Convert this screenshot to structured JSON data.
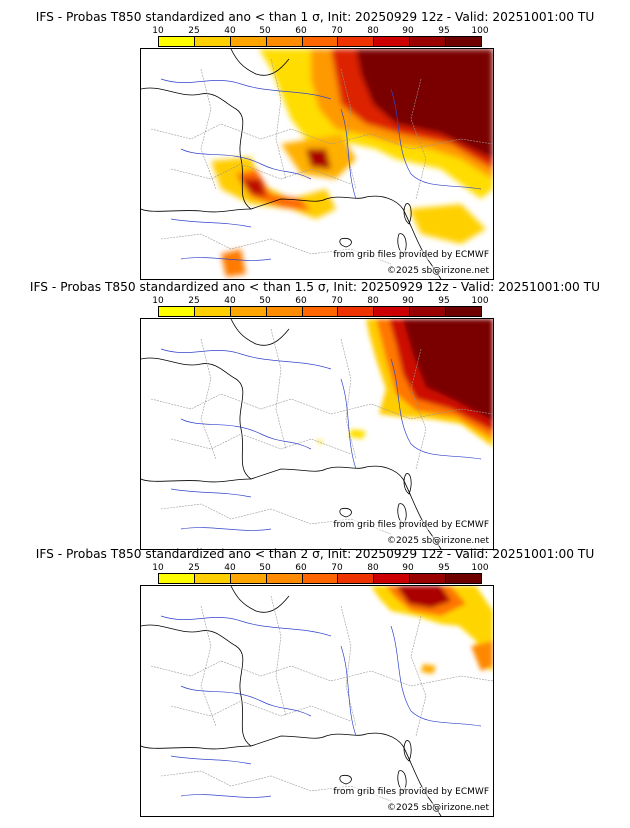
{
  "legend": {
    "ticks": [
      "10",
      "25",
      "40",
      "50",
      "60",
      "70",
      "80",
      "90",
      "95",
      "100"
    ],
    "colors": [
      "#ffff00",
      "#ffd000",
      "#ffa500",
      "#ff8c00",
      "#ff6600",
      "#ee3300",
      "#cc0000",
      "#990000",
      "#6e0000"
    ]
  },
  "panels": [
    {
      "title": "IFS - Probas T850  standardized ano < than 1 σ, Init: 20250929 12z - Valid: 20251001:00 TU",
      "source": "from grib files provided by ECMWF",
      "copyright": "©2025 sb@irizone.net"
    },
    {
      "title": "IFS - Probas T850  standardized ano < than 1.5 σ, Init: 20250929 12z - Valid: 20251001:00 TU",
      "source": "from grib files provided by ECMWF",
      "copyright": "©2025 sb@irizone.net"
    },
    {
      "title": "IFS - Probas T850  standardized ano < than 2 σ, Init: 20250929 12z - Valid: 20251001:00 TU",
      "source": "from grib files provided by ECMWF",
      "copyright": "©2025 sb@irizone.net"
    }
  ]
}
